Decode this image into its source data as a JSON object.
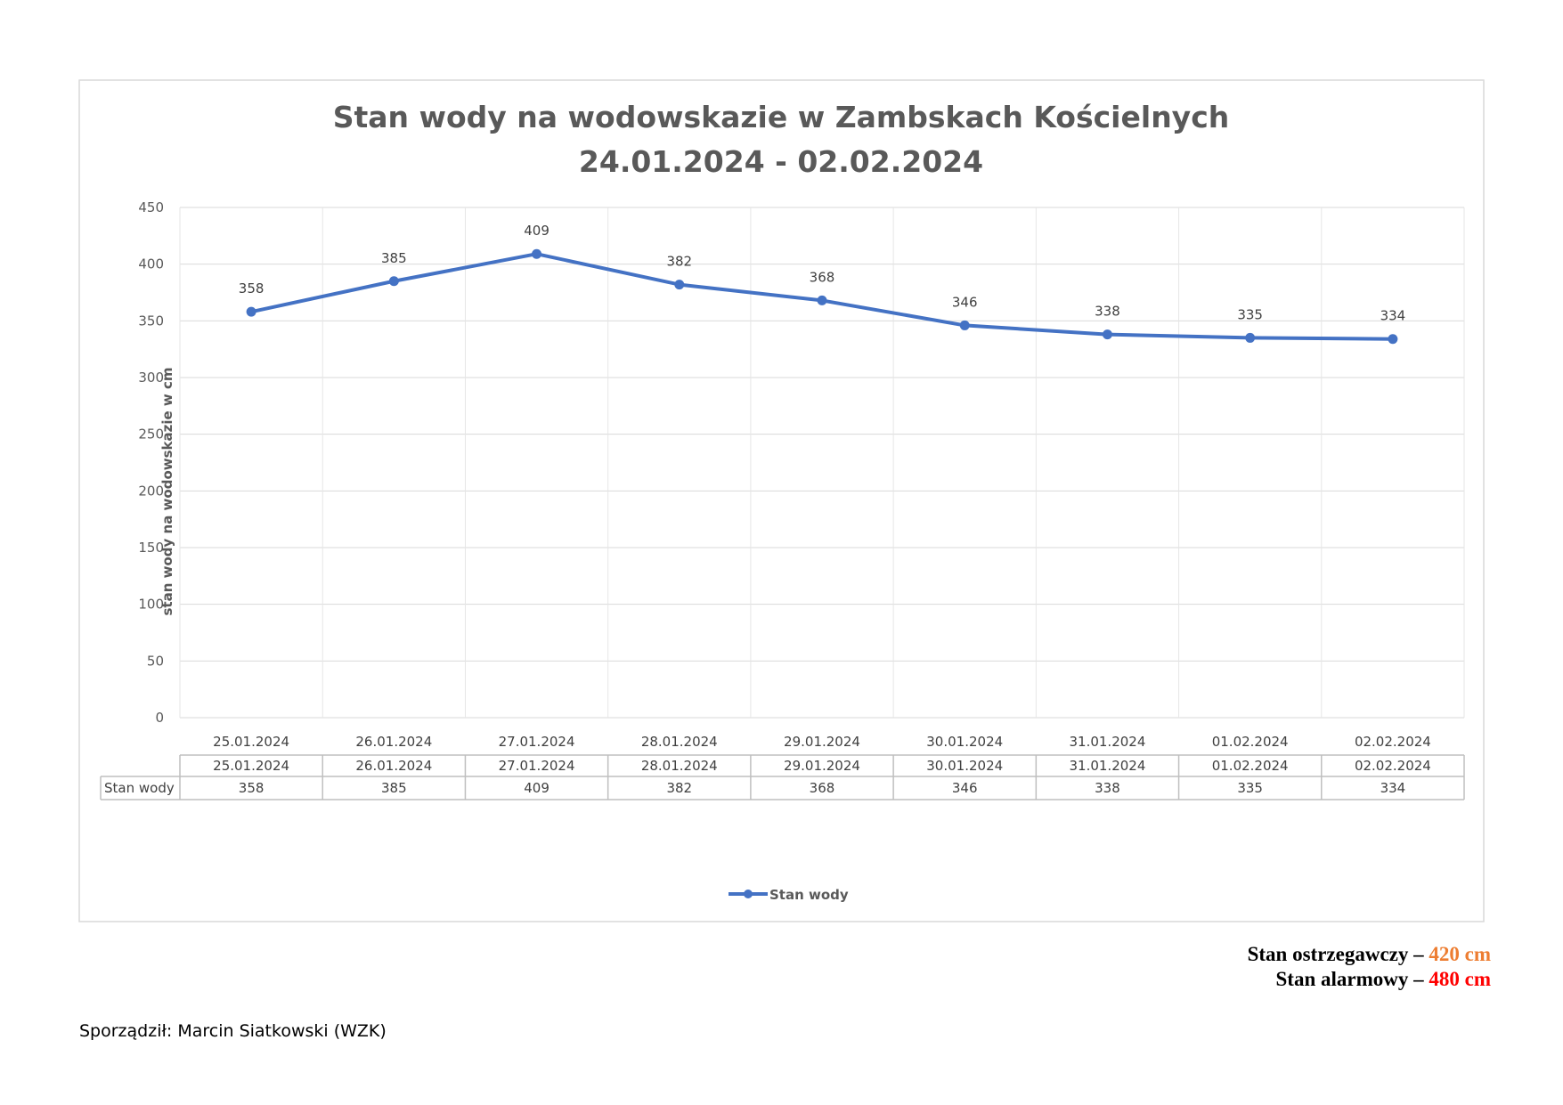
{
  "chart_data": {
    "type": "line",
    "title_line1": "Stan wody na wodowskazie w Zambskach Kościelnych",
    "title_line2": "24.01.2024 - 02.02.2024",
    "ylabel": "stan wody na wodowskazie w cm",
    "xlabel": "",
    "ylim": [
      0,
      450
    ],
    "y_ticks": [
      0,
      50,
      100,
      150,
      200,
      250,
      300,
      350,
      400,
      450
    ],
    "categories": [
      "25.01.2024",
      "26.01.2024",
      "27.01.2024",
      "28.01.2024",
      "29.01.2024",
      "30.01.2024",
      "31.01.2024",
      "01.02.2024",
      "02.02.2024"
    ],
    "series": [
      {
        "name": "Stan wody",
        "values": [
          358,
          385,
          409,
          382,
          368,
          346,
          338,
          335,
          334
        ],
        "color": "#4472C4"
      }
    ],
    "grid": true,
    "legend": "bottom-center",
    "data_table": true
  },
  "levels": {
    "warning_label": "Stan ostrzegawczy – ",
    "warning_value": "420 cm",
    "warning_color": "#ED7D31",
    "alarm_label": "Stan alarmowy – ",
    "alarm_value": "480 cm",
    "alarm_color": "#FF0000"
  },
  "author": "Sporządził: Marcin Siatkowski (WZK)"
}
